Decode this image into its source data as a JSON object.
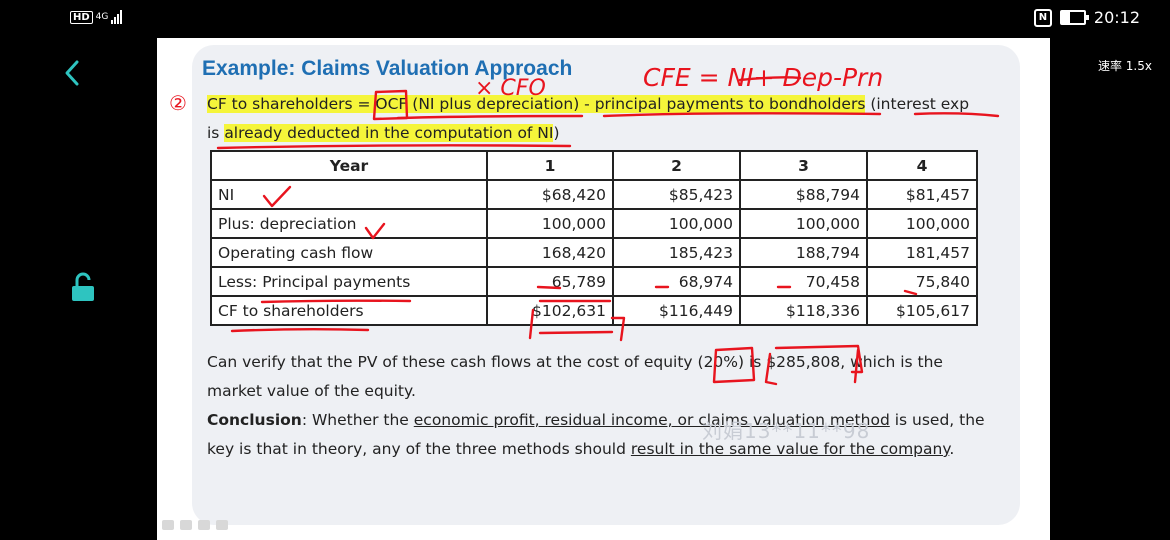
{
  "status_bar": {
    "network": "HD",
    "network_gen": "4G",
    "time": "20:12"
  },
  "player": {
    "speed_label": "速率 1.5x",
    "back_icon": "chevron-left-icon",
    "lock_icon": "unlock-icon"
  },
  "slide": {
    "title": "Example: Claims Valuation Approach",
    "line1": {
      "num": "②",
      "part1": "CF to shareholders = ",
      "part2": "OCF",
      "part3": " (NI plus depreciation)",
      "part4": " - principal payments to bondholders",
      "part5": " (interest exp"
    },
    "line2": {
      "part1": "is ",
      "part2": "already deducted in the computation of NI",
      "part3": ")"
    },
    "table": {
      "headers": [
        "Year",
        "1",
        "2",
        "3",
        "4"
      ],
      "rows": [
        {
          "label": "NI",
          "values": [
            "$68,420",
            "$85,423",
            "$88,794",
            "$81,457"
          ]
        },
        {
          "label": "Plus: depreciation",
          "values": [
            "100,000",
            "100,000",
            "100,000",
            "100,000"
          ]
        },
        {
          "label": "Operating cash flow",
          "values": [
            "168,420",
            "185,423",
            "188,794",
            "181,457"
          ]
        },
        {
          "label": "Less: Principal payments",
          "values": [
            "65,789",
            "68,974",
            "70,458",
            "75,840"
          ]
        },
        {
          "label": "CF to shareholders",
          "values": [
            "$102,631",
            "$116,449",
            "$118,336",
            "$105,617"
          ]
        }
      ]
    },
    "verify": {
      "part1": "Can verify that the PV of these cash flows at the cost of equity (",
      "rate": "20%",
      "part2": ") is ",
      "value": "$285,808",
      "part3": ", which is the",
      "part4": "market value of the equity."
    },
    "conclusion": {
      "label": "Conclusion",
      "part1": ": Whether the ",
      "part2": "economic profit, residual income, or claims valuation method",
      "part3": " is used, the",
      "part4": "key is that in theory, any of the three methods should ",
      "part5": "result in the same value for the company",
      "part6": "."
    },
    "watermark": "刘娟13**11**98"
  },
  "annotations": {
    "cfe_formula": "CFE = NI+ Dep-Prn",
    "cfo_note": "× CFO",
    "ink_color": "#e8141e",
    "highlight_color": "#f5f53a"
  }
}
